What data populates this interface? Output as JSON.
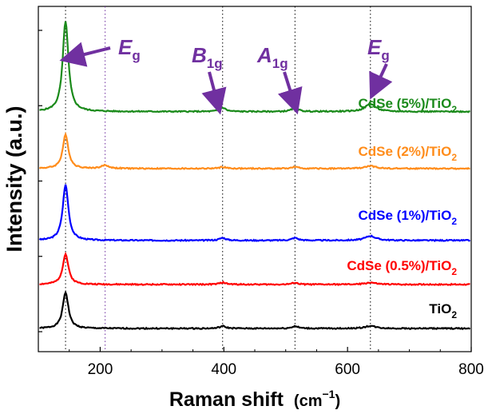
{
  "chart_data": {
    "type": "line",
    "title": "",
    "xlabel": "Raman shift",
    "xlabel_unit_prefix": "(cm",
    "xlabel_unit_exp": "−1",
    "xlabel_unit_suffix": ")",
    "ylabel": "Intensity (a.u.)",
    "xlim": [
      100,
      800
    ],
    "x_ticks": [
      200,
      400,
      600,
      800
    ],
    "x_tick_labels": [
      "200",
      "400",
      "600",
      "800"
    ],
    "y_ticks_unlabeled": 5,
    "reference_lines_cm": [
      144,
      208,
      398,
      515,
      637
    ],
    "peaks_cm": [
      144,
      208,
      398,
      515,
      637
    ],
    "series": [
      {
        "name": "TiO2",
        "label_main": "TiO",
        "label_sub": "2",
        "color": "#000000",
        "offset": 0.0,
        "peak_heights": [
          0.56,
          0.0,
          0.035,
          0.035,
          0.04
        ],
        "noise_seed": 1
      },
      {
        "name": "CdSe (0.5%)/TiO2",
        "label_main": "CdSe (0.5%)/TiO",
        "label_sub": "2",
        "color": "#ff0000",
        "offset": 0.68,
        "peak_heights": [
          0.47,
          0.0,
          0.03,
          0.025,
          0.03
        ],
        "noise_seed": 2
      },
      {
        "name": "CdSe (1%)/TiO2",
        "label_main": "CdSe (1%)/TiO",
        "label_sub": "2",
        "color": "#0000ff",
        "offset": 1.36,
        "peak_heights": [
          0.86,
          0.0,
          0.04,
          0.04,
          0.07
        ],
        "noise_seed": 3
      },
      {
        "name": "CdSe (2%)/TiO2",
        "label_main": "CdSe (2%)/TiO",
        "label_sub": "2",
        "color": "#ff8c1a",
        "offset": 2.47,
        "peak_heights": [
          0.52,
          0.05,
          0.025,
          0.025,
          0.04
        ],
        "noise_seed": 4
      },
      {
        "name": "CdSe (5%)/TiO2",
        "label_main": "CdSe (5%)/TiO",
        "label_sub": "2",
        "color": "#1a8a1a",
        "offset": 3.35,
        "peak_heights": [
          1.4,
          0.0,
          0.06,
          0.06,
          0.12
        ],
        "noise_seed": 5
      }
    ],
    "annotations": [
      {
        "name": "Eg-low",
        "main": "E",
        "sub": "g",
        "target_cm": 144,
        "color": "#7030a0"
      },
      {
        "name": "B1g",
        "main": "B",
        "sub": "1g",
        "target_cm": 398,
        "color": "#7030a0"
      },
      {
        "name": "A1g",
        "main": "A",
        "sub": "1g",
        "target_cm": 515,
        "color": "#7030a0"
      },
      {
        "name": "Eg-high",
        "main": "E",
        "sub": "g",
        "target_cm": 637,
        "color": "#7030a0"
      }
    ]
  }
}
